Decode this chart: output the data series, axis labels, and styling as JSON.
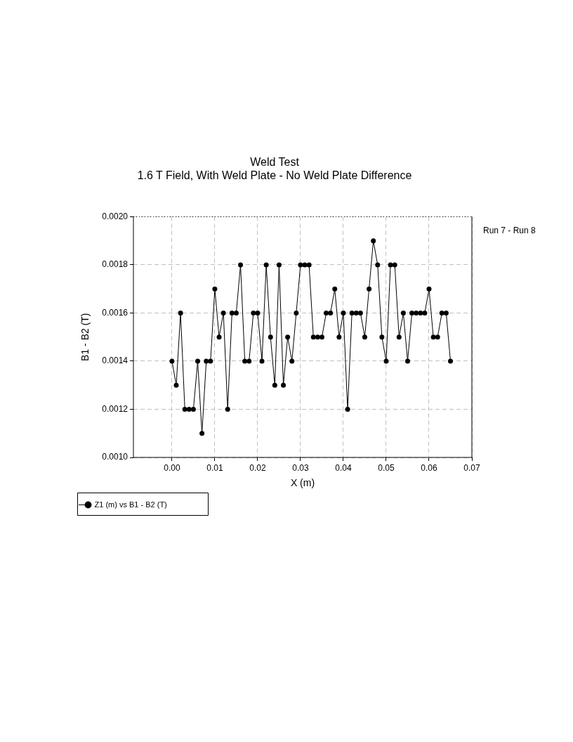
{
  "chart_data": {
    "type": "line",
    "title": "Weld Test",
    "subtitle": "1.6 T Field, With Weld Plate - No Weld Plate Difference",
    "xlabel": "X (m)",
    "ylabel": "B1 - B2 (T)",
    "x": [
      0,
      0.001,
      0.002,
      0.003,
      0.004,
      0.005,
      0.006,
      0.007,
      0.008,
      0.009,
      0.01,
      0.011,
      0.012,
      0.013,
      0.014,
      0.015,
      0.016,
      0.017,
      0.018,
      0.019,
      0.02,
      0.021,
      0.022,
      0.023,
      0.024,
      0.025,
      0.026,
      0.027,
      0.028,
      0.029,
      0.03,
      0.031,
      0.032,
      0.033,
      0.034,
      0.035,
      0.036,
      0.037,
      0.038,
      0.039,
      0.04,
      0.041,
      0.042,
      0.043,
      0.044,
      0.045,
      0.046,
      0.047,
      0.048,
      0.049,
      0.05,
      0.051,
      0.052,
      0.053,
      0.054,
      0.055,
      0.056,
      0.057,
      0.058,
      0.059,
      0.06,
      0.061,
      0.062,
      0.063,
      0.064,
      0.065
    ],
    "series": [
      {
        "name": "Z1 (m) vs B1 - B2 (T)",
        "color": "#000000",
        "values": [
          0.0014,
          0.0013,
          0.0016,
          0.0012,
          0.0012,
          0.0012,
          0.0014,
          0.0011,
          0.0014,
          0.0014,
          0.0017,
          0.0015,
          0.0016,
          0.0012,
          0.0016,
          0.0016,
          0.0018,
          0.0014,
          0.0014,
          0.0016,
          0.0016,
          0.0014,
          0.0018,
          0.0015,
          0.0013,
          0.0018,
          0.0013,
          0.0015,
          0.0014,
          0.0016,
          0.0018,
          0.0018,
          0.0018,
          0.0015,
          0.0015,
          0.0015,
          0.0016,
          0.0016,
          0.0017,
          0.0015,
          0.0016,
          0.0012,
          0.0016,
          0.0016,
          0.0016,
          0.0015,
          0.0017,
          0.0019,
          0.0018,
          0.0015,
          0.0014,
          0.0018,
          0.0018,
          0.0015,
          0.0016,
          0.0014,
          0.0016,
          0.0016,
          0.0016,
          0.0016,
          0.0017,
          0.0015,
          0.0015,
          0.0016,
          0.0016,
          0.0014
        ]
      }
    ],
    "xlim": [
      -0.009,
      0.07
    ],
    "xticks": [
      {
        "value": 0,
        "label": "0.00"
      },
      {
        "value": 0.01,
        "label": "0.01"
      },
      {
        "value": 0.02,
        "label": "0.02"
      },
      {
        "value": 0.03,
        "label": "0.03"
      },
      {
        "value": 0.04,
        "label": "0.04"
      },
      {
        "value": 0.05,
        "label": "0.05"
      },
      {
        "value": 0.06,
        "label": "0.06"
      },
      {
        "value": 0.07,
        "label": "0.07"
      }
    ],
    "ylim": [
      0.001,
      0.002
    ],
    "yticks": [
      {
        "value": 0.001,
        "label": "0.0010"
      },
      {
        "value": 0.0012,
        "label": "0.0012"
      },
      {
        "value": 0.0014,
        "label": "0.0014"
      },
      {
        "value": 0.0016,
        "label": "0.0016"
      },
      {
        "value": 0.0018,
        "label": "0.0018"
      },
      {
        "value": 0.002,
        "label": "0.0020"
      }
    ],
    "grid": true,
    "legend": "bottom left",
    "marker": "circle",
    "line_style": "solid",
    "annotations": [
      "Run 7 - Run 8"
    ]
  }
}
